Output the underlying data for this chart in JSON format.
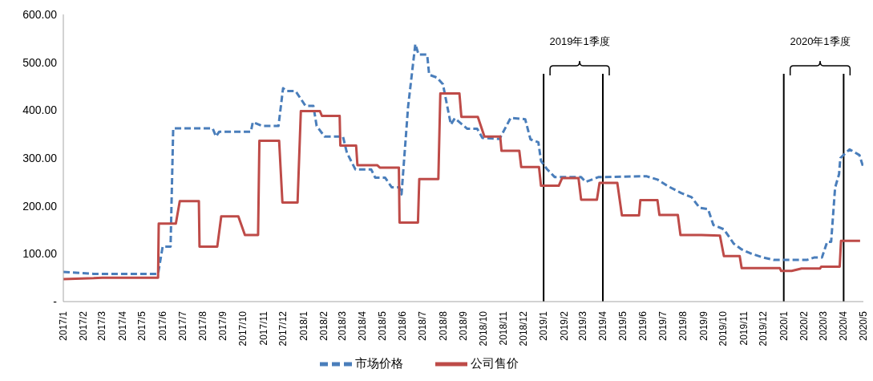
{
  "chart_data": {
    "type": "line",
    "xlim": [
      "2017-01",
      "2020-05"
    ],
    "xticks": [
      {
        "value": "2017-01",
        "label": "2017/1"
      },
      {
        "value": "2017-02",
        "label": "2017/2"
      },
      {
        "value": "2017-03",
        "label": "2017/3"
      },
      {
        "value": "2017-04",
        "label": "2017/4"
      },
      {
        "value": "2017-05",
        "label": "2017/5"
      },
      {
        "value": "2017-06",
        "label": "2017/6"
      },
      {
        "value": "2017-07",
        "label": "2017/7"
      },
      {
        "value": "2017-08",
        "label": "2017/8"
      },
      {
        "value": "2017-09",
        "label": "2017/9"
      },
      {
        "value": "2017-10",
        "label": "2017/10"
      },
      {
        "value": "2017-11",
        "label": "2017/11"
      },
      {
        "value": "2017-12",
        "label": "2017/12"
      },
      {
        "value": "2018-01",
        "label": "2018/1"
      },
      {
        "value": "2018-02",
        "label": "2018/2"
      },
      {
        "value": "2018-03",
        "label": "2018/3"
      },
      {
        "value": "2018-04",
        "label": "2018/4"
      },
      {
        "value": "2018-05",
        "label": "2018/5"
      },
      {
        "value": "2018-06",
        "label": "2018/6"
      },
      {
        "value": "2018-07",
        "label": "2018/7"
      },
      {
        "value": "2018-08",
        "label": "2018/8"
      },
      {
        "value": "2018-09",
        "label": "2018/9"
      },
      {
        "value": "2018-10",
        "label": "2018/10"
      },
      {
        "value": "2018-11",
        "label": "2018/11"
      },
      {
        "value": "2018-12",
        "label": "2018/12"
      },
      {
        "value": "2019-01",
        "label": "2019/1"
      },
      {
        "value": "2019-02",
        "label": "2019/2"
      },
      {
        "value": "2019-03",
        "label": "2019/3"
      },
      {
        "value": "2019-04",
        "label": "2019/4"
      },
      {
        "value": "2019-05",
        "label": "2019/5"
      },
      {
        "value": "2019-06",
        "label": "2019/6"
      },
      {
        "value": "2019-07",
        "label": "2019/7"
      },
      {
        "value": "2019-08",
        "label": "2019/8"
      },
      {
        "value": "2019-09",
        "label": "2019/9"
      },
      {
        "value": "2019-10",
        "label": "2019/10"
      },
      {
        "value": "2019-11",
        "label": "2019/11"
      },
      {
        "value": "2019-12",
        "label": "2019/12"
      },
      {
        "value": "2020-01",
        "label": "2020/1"
      },
      {
        "value": "2020-02",
        "label": "2020/2"
      },
      {
        "value": "2020-03",
        "label": "2020/3"
      },
      {
        "value": "2020-04",
        "label": "2020/4"
      },
      {
        "value": "2020-05",
        "label": "2020/5"
      }
    ],
    "ylim": [
      0,
      600
    ],
    "yticks": [
      {
        "value": 0,
        "label": "-"
      },
      {
        "value": 100,
        "label": "100.00"
      },
      {
        "value": 200,
        "label": "200.00"
      },
      {
        "value": 300,
        "label": "300.00"
      },
      {
        "value": 400,
        "label": "400.00"
      },
      {
        "value": 500,
        "label": "500.00"
      },
      {
        "value": 600,
        "label": "600.00"
      }
    ],
    "legend": "bottom",
    "marker": "none",
    "series": [
      {
        "name": "市场价格",
        "color": "#4a7ebb",
        "line_style": "dashed",
        "x": [
          "2017-01-01",
          "2017-02-16",
          "2017-05-25",
          "2017-06-01",
          "2017-06-13",
          "2017-06-17",
          "2017-08-16",
          "2017-08-21",
          "2017-08-26",
          "2017-10-13",
          "2017-10-16",
          "2017-10-30",
          "2017-11-24",
          "2017-12-01",
          "2017-12-06",
          "2017-12-20",
          "2018-01-04",
          "2018-01-16",
          "2018-01-21",
          "2018-02-02",
          "2018-03-02",
          "2018-03-08",
          "2018-03-21",
          "2018-04-14",
          "2018-04-20",
          "2018-05-05",
          "2018-05-15",
          "2018-05-27",
          "2018-05-30",
          "2018-06-09",
          "2018-06-20",
          "2018-06-25",
          "2018-07-08",
          "2018-07-11",
          "2018-07-23",
          "2018-08-01",
          "2018-08-13",
          "2018-08-19",
          "2018-09-07",
          "2018-09-22",
          "2018-09-30",
          "2018-10-26",
          "2018-11-12",
          "2018-12-04",
          "2018-12-12",
          "2018-12-24",
          "2018-12-28",
          "2019-01-06",
          "2019-01-18",
          "2019-02-27",
          "2019-03-06",
          "2019-03-25",
          "2019-06-06",
          "2019-06-23",
          "2019-07-09",
          "2019-07-29",
          "2019-08-14",
          "2019-08-26",
          "2019-09-08",
          "2019-09-16",
          "2019-10-02",
          "2019-10-17",
          "2019-10-29",
          "2019-11-11",
          "2019-12-01",
          "2019-12-17",
          "2020-02-05",
          "2020-02-16",
          "2020-02-28",
          "2020-03-07",
          "2020-03-13",
          "2020-03-19",
          "2020-03-25",
          "2020-03-27",
          "2020-04-10",
          "2020-04-25",
          "2020-05-01"
        ],
        "values": [
          62,
          58,
          58,
          115,
          115,
          362,
          362,
          345,
          355,
          355,
          375,
          367,
          367,
          446,
          440,
          440,
          409,
          409,
          367,
          345,
          345,
          311,
          276,
          276,
          259,
          259,
          239,
          239,
          224,
          407,
          538,
          516,
          516,
          474,
          468,
          454,
          370,
          383,
          361,
          361,
          342,
          340,
          384,
          381,
          339,
          333,
          294,
          277,
          260,
          260,
          250,
          260,
          262,
          255,
          241,
          227,
          218,
          196,
          193,
          160,
          151,
          121,
          109,
          101,
          92,
          87,
          87,
          92,
          92,
          125,
          125,
          238,
          266,
          300,
          318,
          306,
          280
        ]
      },
      {
        "name": "公司售价",
        "color": "#be4b48",
        "line_style": "solid",
        "x": [
          "2017-01-01",
          "2017-02-16",
          "2017-03-01",
          "2017-05-25",
          "2017-05-26",
          "2017-06-21",
          "2017-06-27",
          "2017-07-26",
          "2017-07-27",
          "2017-08-23",
          "2017-08-29",
          "2017-09-24",
          "2017-10-04",
          "2017-10-24",
          "2017-10-26",
          "2017-11-25",
          "2017-11-30",
          "2017-12-23",
          "2017-12-28",
          "2018-01-26",
          "2018-01-29",
          "2018-02-25",
          "2018-02-26",
          "2018-03-22",
          "2018-03-24",
          "2018-04-23",
          "2018-04-27",
          "2018-05-26",
          "2018-05-27",
          "2018-06-24",
          "2018-06-26",
          "2018-07-25",
          "2018-07-28",
          "2018-08-26",
          "2018-08-29",
          "2018-09-23",
          "2018-10-03",
          "2018-10-27",
          "2018-10-29",
          "2018-11-25",
          "2018-11-28",
          "2018-12-25",
          "2018-12-28",
          "2019-01-24",
          "2019-01-29",
          "2019-02-23",
          "2019-02-27",
          "2019-03-23",
          "2019-03-27",
          "2019-04-23",
          "2019-04-30",
          "2019-05-26",
          "2019-05-28",
          "2019-06-23",
          "2019-06-26",
          "2019-07-24",
          "2019-07-28",
          "2019-08-29",
          "2019-09-26",
          "2019-10-02",
          "2019-10-26",
          "2019-10-29",
          "2019-12-26",
          "2019-12-28",
          "2020-01-13",
          "2020-01-28",
          "2020-02-25",
          "2020-02-27",
          "2020-03-26",
          "2020-03-28",
          "2020-04-26"
        ],
        "values": [
          47,
          49,
          50,
          50,
          163,
          163,
          210,
          210,
          115,
          115,
          178,
          178,
          139,
          139,
          336,
          336,
          207,
          207,
          398,
          398,
          388,
          388,
          326,
          326,
          285,
          285,
          280,
          280,
          165,
          165,
          256,
          256,
          435,
          435,
          386,
          386,
          345,
          345,
          315,
          315,
          281,
          281,
          242,
          242,
          258,
          258,
          213,
          213,
          248,
          248,
          180,
          180,
          212,
          212,
          181,
          181,
          139,
          139,
          138,
          95,
          95,
          70,
          70,
          64,
          64,
          69,
          69,
          73,
          73,
          127,
          127
        ]
      }
    ],
    "ref_lines": [
      {
        "axis": "x",
        "value": "2019-01",
        "color": "#000000"
      },
      {
        "axis": "x",
        "value": "2019-04",
        "color": "#000000"
      },
      {
        "axis": "x",
        "value": "2020-01",
        "color": "#000000"
      },
      {
        "axis": "x",
        "value": "2020-04",
        "color": "#000000"
      }
    ],
    "annotations": [
      "2019年1季度",
      "2020年1季度"
    ]
  }
}
